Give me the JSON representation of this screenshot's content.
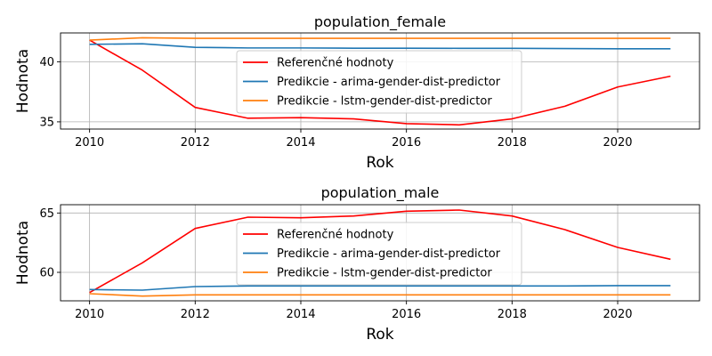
{
  "chart_data": [
    {
      "type": "line",
      "title": "population_female",
      "xlabel": "Rok",
      "ylabel": "Hodnota",
      "x": [
        2010,
        2011,
        2012,
        2013,
        2014,
        2015,
        2016,
        2017,
        2018,
        2019,
        2020,
        2021
      ],
      "xticks": [
        2010,
        2012,
        2014,
        2016,
        2018,
        2020
      ],
      "yticks": [
        35,
        40
      ],
      "xlim": [
        2009.45,
        2021.55
      ],
      "ylim": [
        34.4,
        42.4
      ],
      "grid": true,
      "legend_position": "center",
      "series": [
        {
          "name": "Referenčné hodnoty",
          "color": "#ff0000",
          "values": [
            41.8,
            39.3,
            36.2,
            35.3,
            35.35,
            35.25,
            34.85,
            34.75,
            35.25,
            36.3,
            37.9,
            38.8
          ]
        },
        {
          "name": "Predikcie - arima-gender-dist-predictor",
          "color": "#1f77b4",
          "values": [
            41.45,
            41.5,
            41.2,
            41.15,
            41.15,
            41.13,
            41.13,
            41.12,
            41.12,
            41.1,
            41.08,
            41.08
          ]
        },
        {
          "name": "Predikcie - lstm-gender-dist-predictor",
          "color": "#ff7f0e",
          "values": [
            41.8,
            42.0,
            41.95,
            41.95,
            41.95,
            41.95,
            41.95,
            41.95,
            41.95,
            41.95,
            41.95,
            41.95
          ]
        }
      ]
    },
    {
      "type": "line",
      "title": "population_male",
      "xlabel": "Rok",
      "ylabel": "Hodnota",
      "x": [
        2010,
        2011,
        2012,
        2013,
        2014,
        2015,
        2016,
        2017,
        2018,
        2019,
        2020,
        2021
      ],
      "xticks": [
        2010,
        2012,
        2014,
        2016,
        2018,
        2020
      ],
      "yticks": [
        60,
        65
      ],
      "xlim": [
        2009.45,
        2021.55
      ],
      "ylim": [
        57.6,
        65.7
      ],
      "grid": true,
      "legend_position": "center",
      "series": [
        {
          "name": "Referenčné hodnoty",
          "color": "#ff0000",
          "values": [
            58.3,
            60.8,
            63.7,
            64.65,
            64.6,
            64.75,
            65.15,
            65.25,
            64.75,
            63.6,
            62.1,
            61.1
          ]
        },
        {
          "name": "Predikcie - arima-gender-dist-predictor",
          "color": "#1f77b4",
          "values": [
            58.55,
            58.5,
            58.8,
            58.85,
            58.85,
            58.85,
            58.85,
            58.85,
            58.85,
            58.85,
            58.88,
            58.88
          ]
        },
        {
          "name": "Predikcie - lstm-gender-dist-predictor",
          "color": "#ff7f0e",
          "values": [
            58.2,
            58.0,
            58.1,
            58.1,
            58.1,
            58.1,
            58.1,
            58.1,
            58.1,
            58.1,
            58.1,
            58.1
          ]
        }
      ]
    }
  ]
}
